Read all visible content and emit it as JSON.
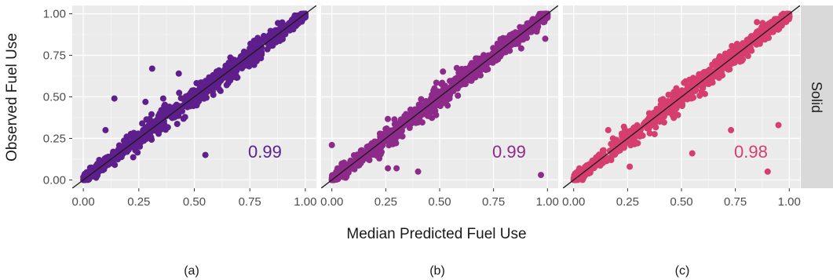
{
  "figure": {
    "ylabel": "Observed Fuel Use",
    "xlabel": "Median Predicted Fuel Use",
    "strip_label": "Solid"
  },
  "chart_data": [
    {
      "type": "scatter",
      "caption": "(a)",
      "r_label": "0.99",
      "color": "#5e1f8c",
      "xlim": [
        -0.05,
        1.05
      ],
      "ylim": [
        -0.05,
        1.05
      ],
      "xticks": [
        "0.00",
        "0.25",
        "0.50",
        "0.75",
        "1.00"
      ],
      "yticks": [
        "0.00",
        "0.25",
        "0.50",
        "0.75",
        "1.00"
      ],
      "reference_line": "y = x",
      "outliers": [
        [
          0.14,
          0.49
        ],
        [
          0.31,
          0.67
        ],
        [
          0.55,
          0.15
        ],
        [
          0.28,
          0.47
        ],
        [
          0.36,
          0.49
        ],
        [
          0.1,
          0.3
        ],
        [
          0.43,
          0.64
        ]
      ]
    },
    {
      "type": "scatter",
      "caption": "(b)",
      "r_label": "0.99",
      "color": "#8e2a8a",
      "xlim": [
        -0.05,
        1.05
      ],
      "ylim": [
        -0.05,
        1.05
      ],
      "xticks": [
        "0.00",
        "0.25",
        "0.50",
        "0.75",
        "1.00"
      ],
      "yticks": [
        "0.00",
        "0.25",
        "0.50",
        "0.75",
        "1.00"
      ],
      "reference_line": "y = x",
      "outliers": [
        [
          0.0,
          0.21
        ],
        [
          0.97,
          0.03
        ],
        [
          0.99,
          0.85
        ],
        [
          0.3,
          0.07
        ],
        [
          0.4,
          0.05
        ],
        [
          0.22,
          0.13
        ],
        [
          0.26,
          0.07
        ]
      ]
    },
    {
      "type": "scatter",
      "caption": "(c)",
      "r_label": "0.98",
      "color": "#d63e6f",
      "xlim": [
        -0.05,
        1.05
      ],
      "ylim": [
        -0.05,
        1.05
      ],
      "xticks": [
        "0.00",
        "0.25",
        "0.50",
        "0.75",
        "1.00"
      ],
      "yticks": [
        "0.00",
        "0.25",
        "0.50",
        "0.75",
        "1.00"
      ],
      "reference_line": "y = x",
      "outliers": [
        [
          0.9,
          0.05
        ],
        [
          0.55,
          0.16
        ],
        [
          0.73,
          0.3
        ],
        [
          0.95,
          0.33
        ],
        [
          0.85,
          0.95
        ],
        [
          0.26,
          0.08
        ],
        [
          0.16,
          0.3
        ]
      ]
    }
  ]
}
